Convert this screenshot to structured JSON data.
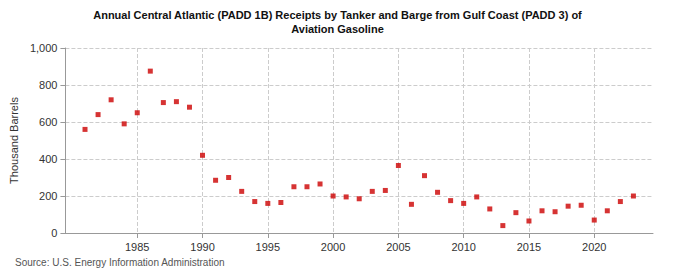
{
  "chart_data": {
    "type": "scatter",
    "title": "Annual Central Atlantic (PADD 1B) Receipts by Tanker and Barge from Gulf Coast (PADD 3) of",
    "subtitle": "Aviation Gasoline",
    "ylabel": "Thousand Barrels",
    "source": "Source: U.S. Energy Information Administration",
    "x": [
      1981,
      1982,
      1983,
      1984,
      1985,
      1986,
      1987,
      1988,
      1989,
      1990,
      1991,
      1992,
      1993,
      1994,
      1995,
      1996,
      1997,
      1998,
      1999,
      2000,
      2001,
      2002,
      2003,
      2004,
      2005,
      2006,
      2007,
      2008,
      2009,
      2010,
      2011,
      2012,
      2013,
      2014,
      2015,
      2016,
      2017,
      2018,
      2019,
      2020,
      2021,
      2022,
      2023
    ],
    "values": [
      560,
      640,
      720,
      590,
      650,
      875,
      705,
      710,
      680,
      420,
      285,
      300,
      225,
      170,
      160,
      165,
      250,
      250,
      265,
      200,
      195,
      185,
      225,
      230,
      365,
      155,
      310,
      220,
      175,
      160,
      195,
      130,
      40,
      110,
      65,
      120,
      115,
      145,
      150,
      70,
      120,
      170,
      200
    ],
    "color": "#cc0000",
    "marker": "square",
    "xlim": [
      1979.5,
      2024.5
    ],
    "xticks": [
      1985,
      1990,
      1995,
      2000,
      2005,
      2010,
      2015,
      2020
    ],
    "ylim": [
      0,
      1000
    ],
    "yticks": [
      0,
      200,
      400,
      600,
      800,
      {
        "value": 1000,
        "label": "1,000"
      }
    ],
    "grid": true
  }
}
